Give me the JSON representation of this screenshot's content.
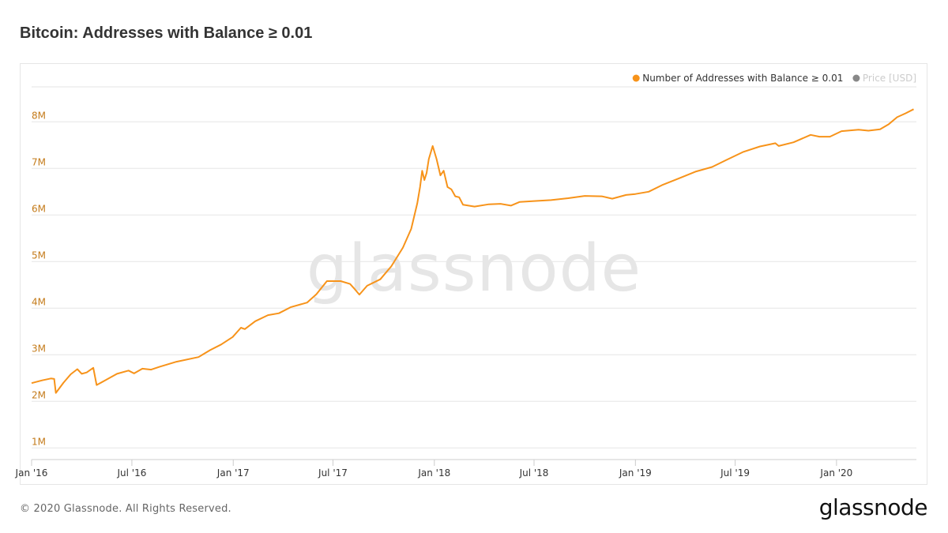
{
  "title": "Bitcoin: Addresses with Balance ≥ 0.01",
  "footer": {
    "copyright": "© 2020 Glassnode. All Rights Reserved.",
    "logo": "glassnode"
  },
  "watermark": "glassnode",
  "colors": {
    "series": "#f7931a",
    "price": "#999999",
    "grid": "#e6e6e6",
    "axis_label": "#c47b1a",
    "watermark": "#e6e6e6"
  },
  "chart_data": {
    "type": "line",
    "title": "Bitcoin: Addresses with Balance ≥ 0.01",
    "xlabel": "",
    "ylabel": "",
    "y_unit": "addresses",
    "ylim": [
      750000,
      8750000
    ],
    "xlim": [
      "2016-01-01",
      "2020-05-25"
    ],
    "y_ticks": [
      1000000,
      2000000,
      3000000,
      4000000,
      5000000,
      6000000,
      7000000,
      8000000
    ],
    "y_tick_labels": [
      "1M",
      "2M",
      "3M",
      "4M",
      "5M",
      "6M",
      "7M",
      "8M"
    ],
    "x_ticks": [
      "2016-01-01",
      "2016-07-01",
      "2017-01-01",
      "2017-07-01",
      "2018-01-01",
      "2018-07-01",
      "2019-01-01",
      "2019-07-01",
      "2020-01-01"
    ],
    "x_tick_labels": [
      "Jan '16",
      "Jul '16",
      "Jan '17",
      "Jul '17",
      "Jan '18",
      "Jul '18",
      "Jan '19",
      "Jul '19",
      "Jan '20"
    ],
    "grid": true,
    "legend_position": "top-right",
    "series": [
      {
        "name": "Number of Addresses with Balance ≥ 0.01",
        "color": "#f7931a",
        "visible": true,
        "points": [
          [
            "2016-01-01",
            2390000
          ],
          [
            "2016-01-20",
            2450000
          ],
          [
            "2016-02-05",
            2490000
          ],
          [
            "2016-02-11",
            2480000
          ],
          [
            "2016-02-14",
            2180000
          ],
          [
            "2016-02-28",
            2400000
          ],
          [
            "2016-03-12",
            2580000
          ],
          [
            "2016-03-24",
            2690000
          ],
          [
            "2016-04-01",
            2590000
          ],
          [
            "2016-04-10",
            2620000
          ],
          [
            "2016-04-22",
            2720000
          ],
          [
            "2016-04-28",
            2350000
          ],
          [
            "2016-05-12",
            2440000
          ],
          [
            "2016-06-04",
            2590000
          ],
          [
            "2016-06-25",
            2660000
          ],
          [
            "2016-07-05",
            2600000
          ],
          [
            "2016-07-20",
            2700000
          ],
          [
            "2016-08-05",
            2680000
          ],
          [
            "2016-08-20",
            2740000
          ],
          [
            "2016-09-20",
            2850000
          ],
          [
            "2016-10-30",
            2950000
          ],
          [
            "2016-11-20",
            3100000
          ],
          [
            "2016-12-10",
            3220000
          ],
          [
            "2016-12-31",
            3380000
          ],
          [
            "2017-01-15",
            3580000
          ],
          [
            "2017-01-22",
            3550000
          ],
          [
            "2017-02-10",
            3720000
          ],
          [
            "2017-03-05",
            3850000
          ],
          [
            "2017-03-25",
            3890000
          ],
          [
            "2017-04-15",
            4020000
          ],
          [
            "2017-05-15",
            4120000
          ],
          [
            "2017-06-01",
            4300000
          ],
          [
            "2017-06-20",
            4580000
          ],
          [
            "2017-07-15",
            4580000
          ],
          [
            "2017-08-01",
            4520000
          ],
          [
            "2017-08-10",
            4400000
          ],
          [
            "2017-08-18",
            4290000
          ],
          [
            "2017-09-01",
            4480000
          ],
          [
            "2017-09-25",
            4620000
          ],
          [
            "2017-10-15",
            4900000
          ],
          [
            "2017-11-05",
            5300000
          ],
          [
            "2017-11-20",
            5700000
          ],
          [
            "2017-12-01",
            6250000
          ],
          [
            "2017-12-06",
            6600000
          ],
          [
            "2017-12-10",
            6950000
          ],
          [
            "2017-12-14",
            6750000
          ],
          [
            "2017-12-18",
            6900000
          ],
          [
            "2017-12-22",
            7200000
          ],
          [
            "2017-12-29",
            7480000
          ],
          [
            "2018-01-05",
            7200000
          ],
          [
            "2018-01-12",
            6850000
          ],
          [
            "2018-01-18",
            6950000
          ],
          [
            "2018-01-25",
            6600000
          ],
          [
            "2018-02-01",
            6550000
          ],
          [
            "2018-02-08",
            6400000
          ],
          [
            "2018-02-15",
            6380000
          ],
          [
            "2018-02-22",
            6220000
          ],
          [
            "2018-03-15",
            6180000
          ],
          [
            "2018-04-10",
            6230000
          ],
          [
            "2018-05-01",
            6240000
          ],
          [
            "2018-05-20",
            6200000
          ],
          [
            "2018-06-05",
            6280000
          ],
          [
            "2018-07-01",
            6300000
          ],
          [
            "2018-08-01",
            6320000
          ],
          [
            "2018-09-01",
            6360000
          ],
          [
            "2018-10-01",
            6410000
          ],
          [
            "2018-11-01",
            6400000
          ],
          [
            "2018-11-20",
            6350000
          ],
          [
            "2018-12-15",
            6430000
          ],
          [
            "2019-01-01",
            6450000
          ],
          [
            "2019-01-25",
            6500000
          ],
          [
            "2019-02-20",
            6650000
          ],
          [
            "2019-03-20",
            6780000
          ],
          [
            "2019-04-20",
            6930000
          ],
          [
            "2019-05-20",
            7030000
          ],
          [
            "2019-06-15",
            7180000
          ],
          [
            "2019-07-15",
            7350000
          ],
          [
            "2019-08-15",
            7470000
          ],
          [
            "2019-09-12",
            7540000
          ],
          [
            "2019-09-18",
            7480000
          ],
          [
            "2019-10-15",
            7560000
          ],
          [
            "2019-11-15",
            7720000
          ],
          [
            "2019-12-01",
            7680000
          ],
          [
            "2019-12-20",
            7680000
          ],
          [
            "2020-01-10",
            7800000
          ],
          [
            "2020-02-10",
            7830000
          ],
          [
            "2020-02-28",
            7810000
          ],
          [
            "2020-03-20",
            7840000
          ],
          [
            "2020-04-05",
            7950000
          ],
          [
            "2020-04-20",
            8100000
          ],
          [
            "2020-05-05",
            8180000
          ],
          [
            "2020-05-20",
            8270000
          ]
        ]
      },
      {
        "name": "Price [USD]",
        "color": "#999999",
        "visible": false,
        "points": []
      }
    ]
  }
}
